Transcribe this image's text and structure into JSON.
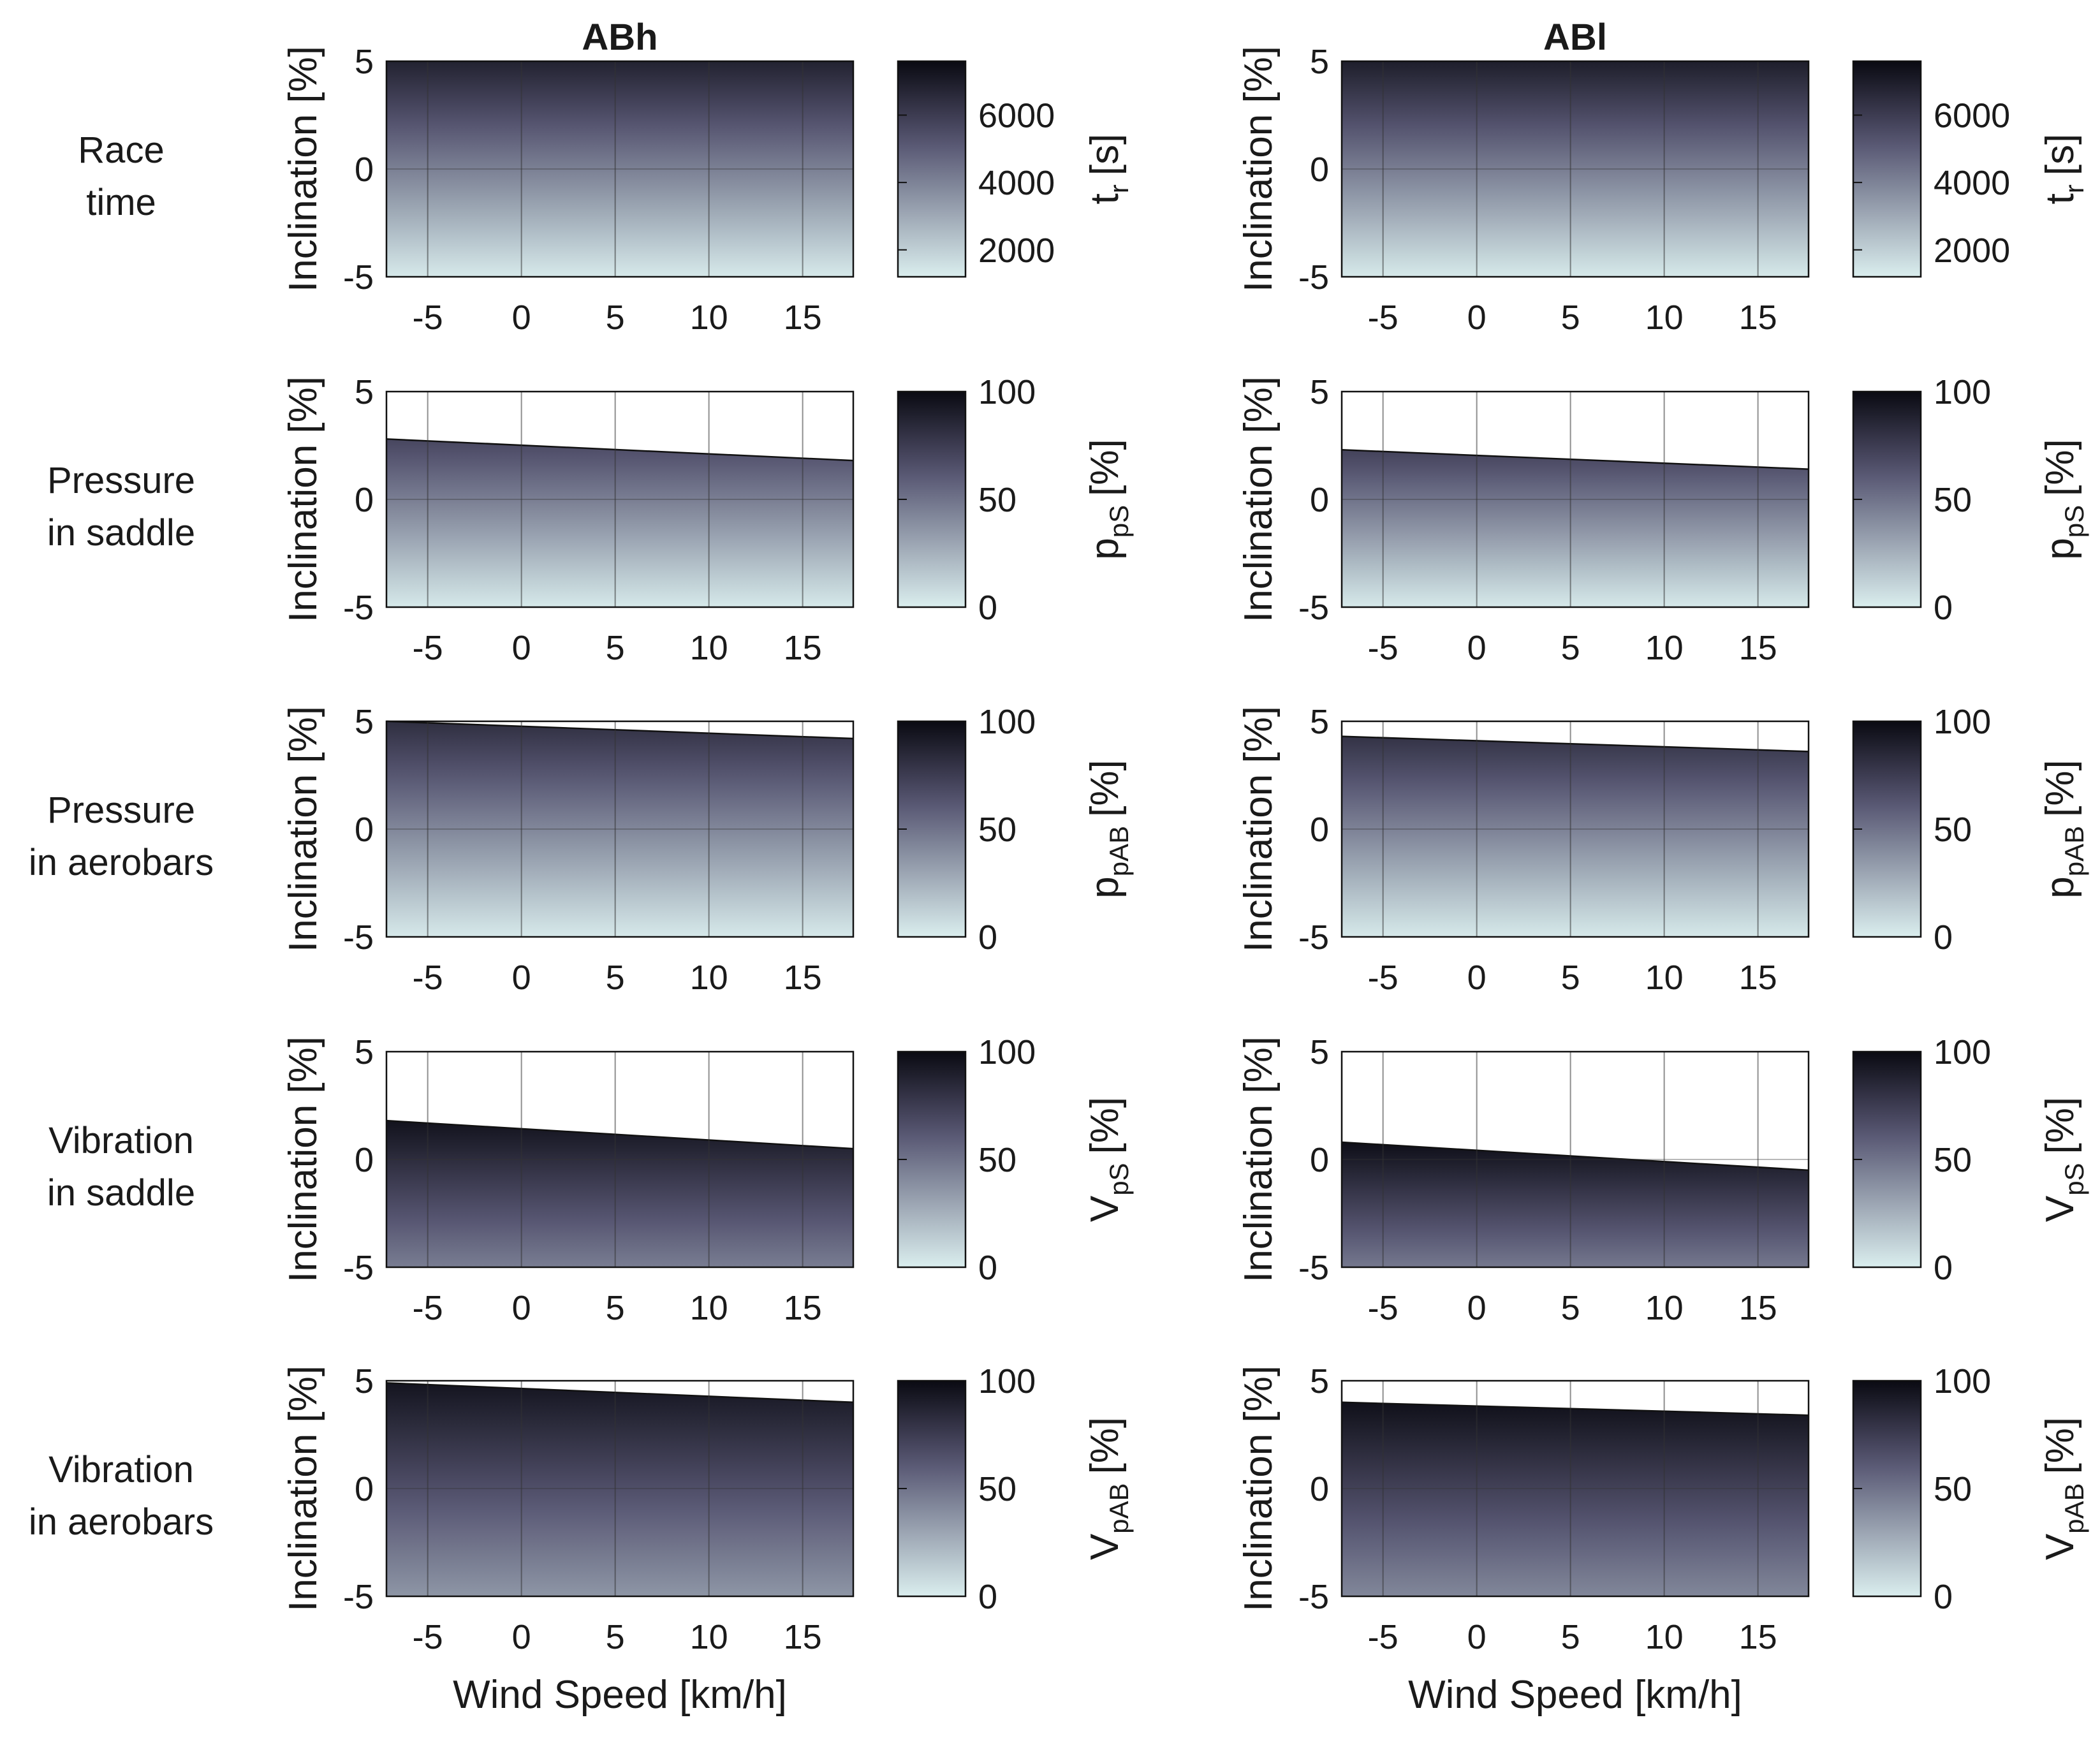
{
  "chart_data": {
    "type": "heatmap",
    "columns": [
      {
        "title": "ABh"
      },
      {
        "title": "ABl"
      }
    ],
    "rows": [
      {
        "label_lines": [
          "Race",
          "time"
        ],
        "cb_main": "t",
        "cb_sub": "r",
        "cb_unit": "[s]",
        "cb_ticks": [
          2000,
          4000,
          6000
        ],
        "cb_range": [
          1200,
          7600
        ]
      },
      {
        "label_lines": [
          "Pressure",
          "in saddle"
        ],
        "cb_main": "p",
        "cb_sub": "pS",
        "cb_unit": "[%]",
        "cb_ticks": [
          0,
          50,
          100
        ],
        "cb_range": [
          0,
          100
        ]
      },
      {
        "label_lines": [
          "Pressure",
          "in aerobars"
        ],
        "cb_main": "p",
        "cb_sub": "pAB",
        "cb_unit": "[%]",
        "cb_ticks": [
          0,
          50,
          100
        ],
        "cb_range": [
          0,
          100
        ]
      },
      {
        "label_lines": [
          "Vibration",
          "in saddle"
        ],
        "cb_main": "V",
        "cb_sub": "pS",
        "cb_unit": "[%]",
        "cb_ticks": [
          0,
          50,
          100
        ],
        "cb_range": [
          0,
          100
        ]
      },
      {
        "label_lines": [
          "Vibration",
          "in aerobars"
        ],
        "cb_main": "V",
        "cb_sub": "pAB",
        "cb_unit": "[%]",
        "cb_ticks": [
          0,
          50,
          100
        ],
        "cb_range": [
          0,
          100
        ]
      }
    ],
    "xlabel": "Wind Speed [km/h]",
    "ylabel": "Inclination [%]",
    "xlim": [
      -7.2,
      17.7
    ],
    "ylim": [
      -5,
      5
    ],
    "xticks": [
      -5,
      0,
      5,
      10,
      15
    ],
    "yticks": [
      -5,
      0,
      5
    ],
    "colormap": {
      "low": "#daeeee",
      "mid": "#575672",
      "high": "#0a0a12"
    },
    "panels": [
      [
        {
          "boundary_y": [
            5,
            5
          ],
          "shade": [
            [
              0.02,
              0.88
            ],
            [
              0.02,
              0.88
            ]
          ]
        },
        {
          "boundary_y": [
            2.8,
            1.8
          ],
          "shade": [
            [
              0.02,
              0.7
            ],
            [
              0.02,
              0.75
            ]
          ]
        },
        {
          "boundary_y": [
            5,
            4.2
          ],
          "shade": [
            [
              0.02,
              0.82
            ],
            [
              0.02,
              0.82
            ]
          ]
        },
        {
          "boundary_y": [
            1.8,
            0.5
          ],
          "shade": [
            [
              0.46,
              0.96
            ],
            [
              0.46,
              0.96
            ]
          ]
        },
        {
          "boundary_y": [
            4.9,
            4.0
          ],
          "shade": [
            [
              0.36,
              0.95
            ],
            [
              0.36,
              0.95
            ]
          ]
        }
      ],
      [
        {
          "boundary_y": [
            5,
            5
          ],
          "shade": [
            [
              0.02,
              0.9
            ],
            [
              0.02,
              0.9
            ]
          ]
        },
        {
          "boundary_y": [
            2.3,
            1.4
          ],
          "shade": [
            [
              0.02,
              0.72
            ],
            [
              0.02,
              0.76
            ]
          ]
        },
        {
          "boundary_y": [
            4.3,
            3.6
          ],
          "shade": [
            [
              0.02,
              0.8
            ],
            [
              0.02,
              0.8
            ]
          ]
        },
        {
          "boundary_y": [
            0.8,
            -0.5
          ],
          "shade": [
            [
              0.48,
              0.98
            ],
            [
              0.48,
              0.98
            ]
          ]
        },
        {
          "boundary_y": [
            4.0,
            3.4
          ],
          "shade": [
            [
              0.42,
              0.97
            ],
            [
              0.42,
              0.97
            ]
          ]
        }
      ]
    ]
  }
}
